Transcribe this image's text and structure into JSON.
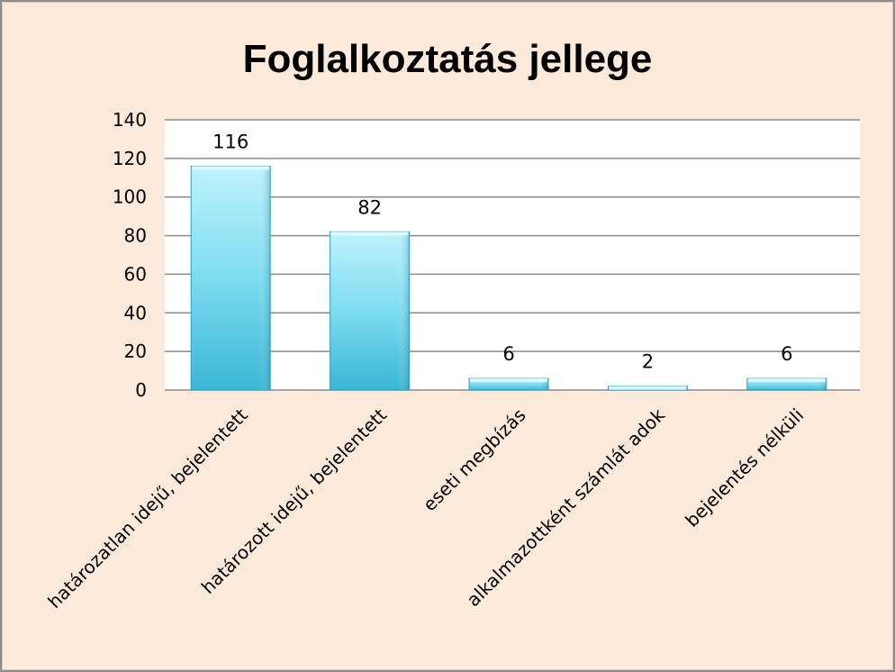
{
  "chart_data": {
    "type": "bar",
    "title": "Foglalkoztatás jellege",
    "xlabel": "",
    "ylabel": "",
    "categories": [
      "határozatlan idejű, bejelentett",
      "határozott idejű, bejelentett",
      "eseti megbízás",
      "alkalmazottként számlát adok",
      "bejelentés nélküli"
    ],
    "values": [
      116,
      82,
      6,
      2,
      6
    ],
    "ylim": [
      0,
      140
    ],
    "yticks": [
      0,
      20,
      40,
      60,
      80,
      100,
      120,
      140
    ],
    "grid": true,
    "legend": "none",
    "colors": {
      "bar_light": "#bff2fc",
      "bar_mid": "#7ddcf0",
      "bar_dark": "#3bb6d6",
      "background": "#fdeadb",
      "plot_area": "#ffffff",
      "gridline": "#8a8a8a"
    }
  }
}
